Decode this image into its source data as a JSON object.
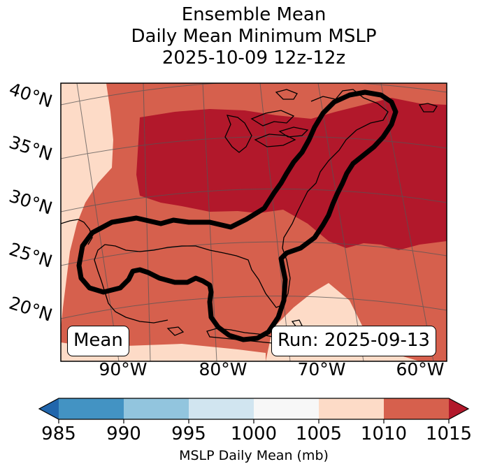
{
  "title": {
    "line1": "Ensemble Mean",
    "line2": "Daily Mean Minimum MSLP",
    "line3": "2025-10-09 12z-12z"
  },
  "map": {
    "latitude_labels": [
      "40°N",
      "35°N",
      "30°N",
      "25°N",
      "20°N"
    ],
    "longitude_labels": [
      "90°W",
      "80°W",
      "70°W",
      "60°W"
    ],
    "mean_badge": "Mean",
    "run_badge": "Run: 2025-09-13",
    "fill_colors": {
      "r1005_1010": "#fddbc7",
      "r1010_1015": "#d6604d",
      "r_above_1015": "#b2182b"
    },
    "contour_color": "#000000",
    "coastline_color": "#000000"
  },
  "colorbar": {
    "ticks": [
      "985",
      "990",
      "995",
      "1000",
      "1005",
      "1010",
      "1015"
    ],
    "label": "MSLP Daily Mean (mb)",
    "colors": [
      "#2166ac",
      "#4393c3",
      "#92c5de",
      "#d1e5f0",
      "#f7f7f7",
      "#fddbc7",
      "#d6604d",
      "#b2182b"
    ],
    "extend": "both"
  }
}
